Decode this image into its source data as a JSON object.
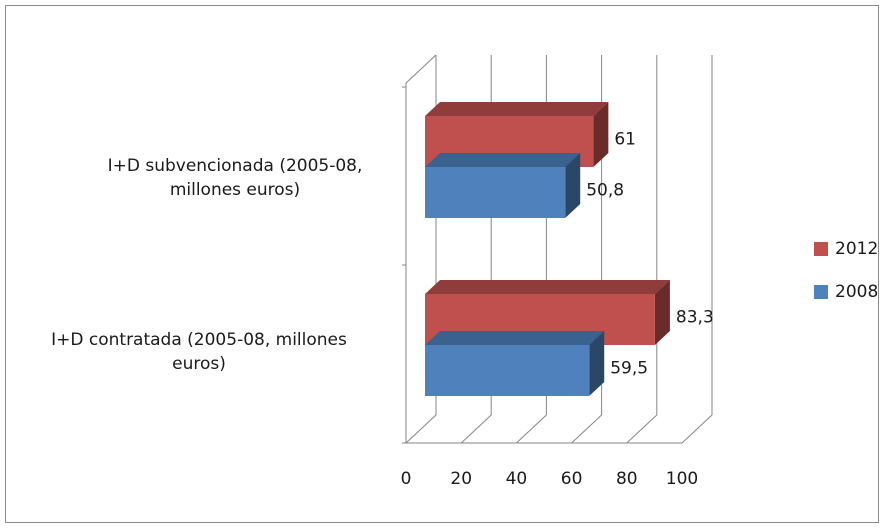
{
  "chart_data": {
    "type": "bar",
    "orientation": "horizontal",
    "style": "3d",
    "categories": [
      [
        "I+D subvencionada (2005-08,",
        "millones euros)"
      ],
      [
        "I+D contratada (2005-08, millones",
        "euros)"
      ]
    ],
    "series": [
      {
        "name": "2012",
        "values": [
          61,
          83.3
        ],
        "labels": [
          "61",
          "83,3"
        ],
        "color": "#c0504d"
      },
      {
        "name": "2008",
        "values": [
          50.8,
          59.5
        ],
        "labels": [
          "50,8",
          "59,5"
        ],
        "color": "#4f81bd"
      }
    ],
    "xlim": [
      0,
      100
    ],
    "xticks": [
      "0",
      "20",
      "40",
      "60",
      "80",
      "100"
    ],
    "grid": true,
    "legend_position": "right"
  }
}
